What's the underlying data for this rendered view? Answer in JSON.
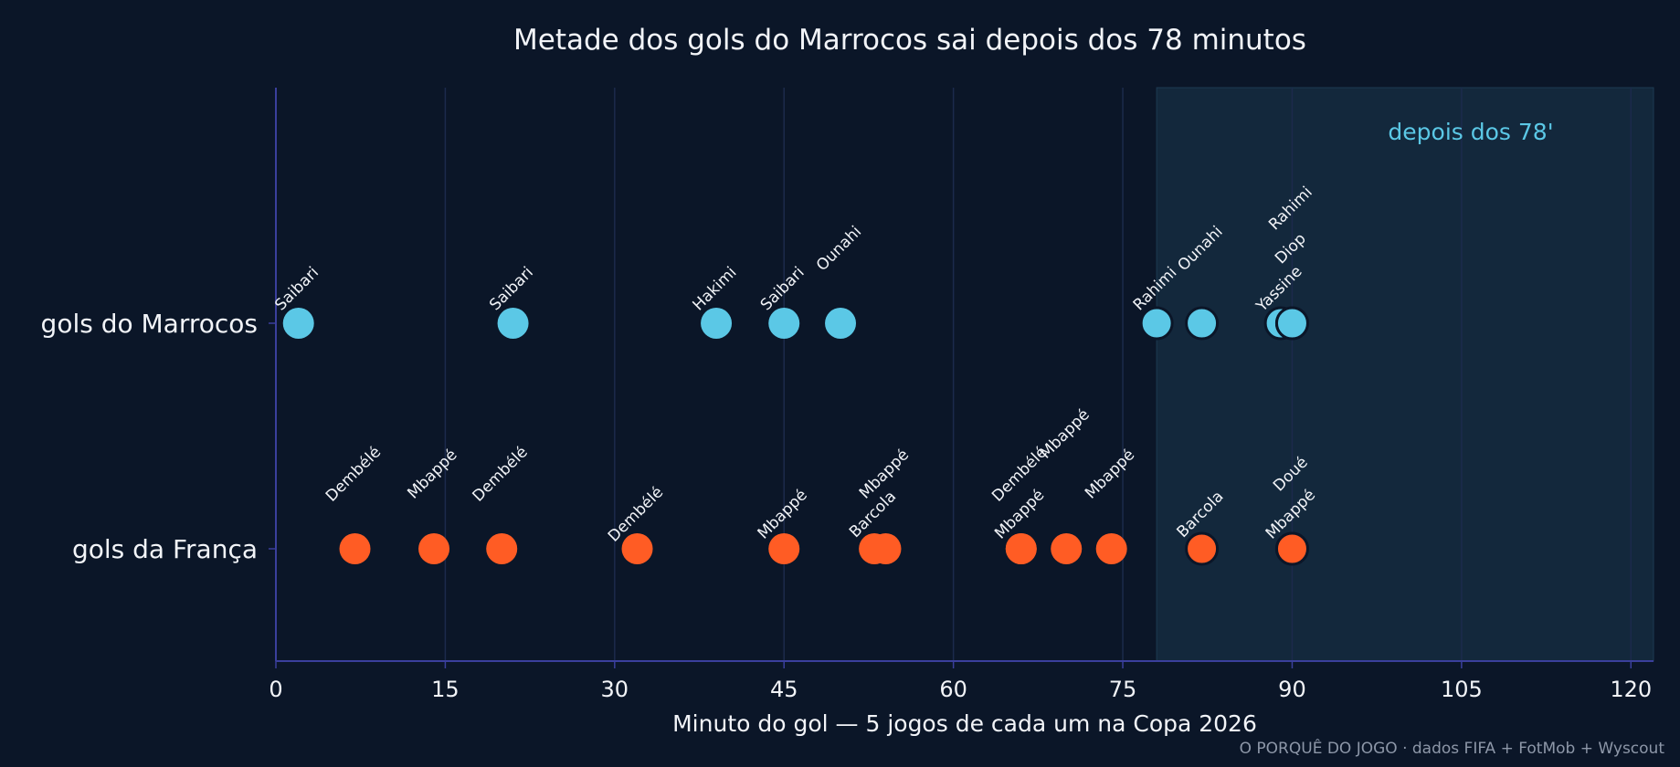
{
  "colors": {
    "background": "#0b1628",
    "text": "#f2f4f8",
    "axis": "#3a3f9c",
    "grid": "#1c2a4c",
    "highlight_zone": "#13283c",
    "highlight_text": "#5bc8e6",
    "morocco": "#5bc8e6",
    "france": "#ff5c24",
    "credit": "#8d97a8"
  },
  "chart_data": {
    "type": "scatter",
    "title": "Metade dos gols do Marrocos sai depois dos 78 minutos",
    "xlabel": "Minuto do gol — 5 jogos de cada um na Copa 2026",
    "ylabel": "",
    "xlim": [
      0,
      122
    ],
    "xticks": [
      0,
      15,
      30,
      45,
      60,
      75,
      90,
      105,
      120
    ],
    "grid": "vertical",
    "categories": [
      "gols do Marrocos",
      "gols da França"
    ],
    "highlight": {
      "from": 78,
      "to": 122,
      "label": "depois dos 78'"
    },
    "series": [
      {
        "name": "gols do Marrocos",
        "color": "#5bc8e6",
        "points": [
          {
            "x": 2,
            "label": "Saibari",
            "stack": 0
          },
          {
            "x": 21,
            "label": "Saibari",
            "stack": 0
          },
          {
            "x": 39,
            "label": "Hakimi",
            "stack": 0
          },
          {
            "x": 45,
            "label": "Saibari",
            "stack": 0
          },
          {
            "x": 50,
            "label": "Ounahi",
            "stack": 1
          },
          {
            "x": 78,
            "label": "Rahimi",
            "stack": 0
          },
          {
            "x": 82,
            "label": "Ounahi",
            "stack": 1
          },
          {
            "x": 89,
            "label": "Yassine",
            "stack": 0
          },
          {
            "x": 90,
            "label": "Diop",
            "stack": 1
          },
          {
            "x": 90,
            "label": "Rahimi",
            "stack": 2
          }
        ]
      },
      {
        "name": "gols da França",
        "color": "#ff5c24",
        "points": [
          {
            "x": 7,
            "label": "Dembélé",
            "stack": 1
          },
          {
            "x": 14,
            "label": "Mbappé",
            "stack": 1
          },
          {
            "x": 20,
            "label": "Dembélé",
            "stack": 1
          },
          {
            "x": 32,
            "label": "Dembélé",
            "stack": 0
          },
          {
            "x": 45,
            "label": "Mbappé",
            "stack": 0
          },
          {
            "x": 53,
            "label": "Barcola",
            "stack": 0
          },
          {
            "x": 54,
            "label": "Mbappé",
            "stack": 1
          },
          {
            "x": 66,
            "label": "Mbappé",
            "stack": 0
          },
          {
            "x": 66,
            "label": "Dembélé",
            "stack": 1
          },
          {
            "x": 70,
            "label": "Mbappé",
            "stack": 2
          },
          {
            "x": 74,
            "label": "Mbappé",
            "stack": 1
          },
          {
            "x": 82,
            "label": "Barcola",
            "stack": 0
          },
          {
            "x": 90,
            "label": "Mbappé",
            "stack": 0
          },
          {
            "x": 90,
            "label": "Doué",
            "stack": 1
          }
        ]
      }
    ]
  },
  "credit": "O PORQUÊ DO JOGO · dados FIFA + FotMob + Wyscout"
}
